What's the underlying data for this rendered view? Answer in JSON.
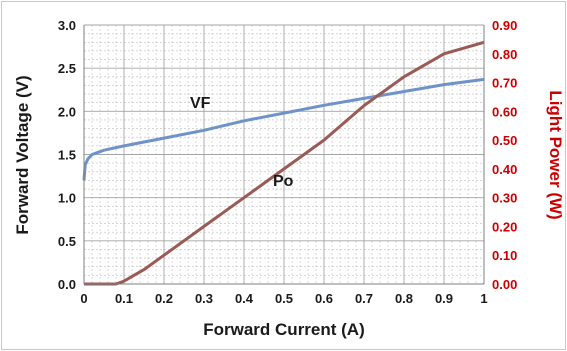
{
  "chart_data": {
    "type": "line",
    "xlabel": "Forward Current (A)",
    "ylabel_left": "Forward Voltage (V)",
    "ylabel_right": "Light Power (W)",
    "xlim": [
      0,
      1
    ],
    "ylim_left": [
      0,
      3
    ],
    "ylim_right": [
      0,
      0.9
    ],
    "x_ticks": [
      "0",
      "0.1",
      "0.2",
      "0.3",
      "0.4",
      "0.5",
      "0.6",
      "0.7",
      "0.8",
      "0.9",
      "1"
    ],
    "y_left_ticks": [
      "0.0",
      "0.5",
      "1.0",
      "1.5",
      "2.0",
      "2.5",
      "3.0"
    ],
    "y_right_ticks": [
      "0.00",
      "0.10",
      "0.20",
      "0.30",
      "0.40",
      "0.50",
      "0.60",
      "0.70",
      "0.80",
      "0.90"
    ],
    "grid": true,
    "colors": {
      "vf": "#6f93c8",
      "po": "#9a5a55",
      "right_axis": "#cc0000",
      "grid": "#bfbfbf",
      "text": "#1a1a1a"
    },
    "series": [
      {
        "name": "VF",
        "axis": "left",
        "x": [
          0,
          0.003,
          0.01,
          0.02,
          0.05,
          0.1,
          0.2,
          0.3,
          0.4,
          0.5,
          0.6,
          0.7,
          0.8,
          0.9,
          1.0
        ],
        "values": [
          1.2,
          1.38,
          1.45,
          1.5,
          1.55,
          1.6,
          1.69,
          1.78,
          1.89,
          1.98,
          2.07,
          2.15,
          2.23,
          2.31,
          2.37
        ]
      },
      {
        "name": "Po",
        "axis": "right",
        "x": [
          0,
          0.05,
          0.08,
          0.1,
          0.15,
          0.2,
          0.3,
          0.4,
          0.5,
          0.6,
          0.7,
          0.8,
          0.9,
          1.0
        ],
        "values": [
          0,
          0,
          0,
          0.01,
          0.05,
          0.1,
          0.2,
          0.3,
          0.4,
          0.5,
          0.62,
          0.72,
          0.8,
          0.84
        ]
      }
    ]
  }
}
